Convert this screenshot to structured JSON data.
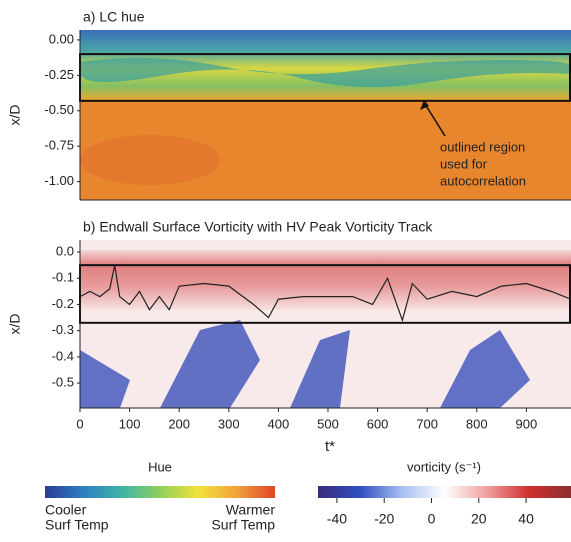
{
  "chart_data": [
    {
      "type": "heatmap",
      "title": "a) LC hue",
      "y_label": "x/D",
      "xlim": [
        0,
        990
      ],
      "ylim": [
        -1.13,
        0.07
      ],
      "yticks": [
        {
          "value": 0,
          "label": "0.00"
        },
        {
          "value": -0.25,
          "label": "-0.25"
        },
        {
          "value": -0.5,
          "label": "-0.50"
        },
        {
          "value": -0.75,
          "label": "-0.75"
        },
        {
          "value": -1,
          "label": "-1.00"
        }
      ],
      "region": [
        -0.1,
        -0.43
      ],
      "annotation": [
        "outlined region",
        "used for",
        "autocorrelation"
      ],
      "colorbar": {
        "title": "Hue",
        "low_label": [
          "Cooler",
          "Surf Temp"
        ],
        "high_label": [
          "Warmer",
          "Surf Temp"
        ],
        "colors": [
          "#2a3d9a",
          "#2f7fc0",
          "#3fb3a8",
          "#8fcf5a",
          "#f2e23a",
          "#f2a23a",
          "#e0452a"
        ]
      }
    },
    {
      "type": "line",
      "title": "b) Endwall Surface Vorticity with HV Peak Vorticity Track",
      "y_label": "x/D",
      "x_label": "t*",
      "xlim": [
        0,
        990
      ],
      "ylim": [
        -0.595,
        0.046
      ],
      "xticks": [
        0,
        100,
        200,
        300,
        400,
        500,
        600,
        700,
        800,
        900
      ],
      "yticks": [
        {
          "value": 0,
          "label": "0.0"
        },
        -0.1,
        -0.2,
        -0.3,
        -0.4,
        -0.5
      ],
      "region": [
        -0.05,
        -0.27
      ],
      "x": [
        0,
        20,
        40,
        60,
        70,
        80,
        100,
        120,
        140,
        160,
        180,
        200,
        250,
        300,
        350,
        380,
        400,
        450,
        500,
        550,
        590,
        620,
        650,
        670,
        700,
        750,
        800,
        850,
        900,
        950,
        990
      ],
      "series": [
        {
          "color": "#222222",
          "values": [
            -0.17,
            -0.15,
            -0.17,
            -0.14,
            -0.05,
            -0.17,
            -0.2,
            -0.15,
            -0.22,
            -0.17,
            -0.22,
            -0.13,
            -0.12,
            -0.13,
            -0.2,
            -0.25,
            -0.18,
            -0.17,
            -0.17,
            -0.17,
            -0.2,
            -0.1,
            -0.26,
            -0.12,
            -0.18,
            -0.15,
            -0.17,
            -0.13,
            -0.12,
            -0.15,
            -0.18
          ]
        }
      ],
      "colorbar": {
        "title": "vorticity (s⁻¹)",
        "lim": [
          -48,
          59
        ],
        "ticks": [
          -40,
          -20,
          0,
          20,
          40
        ],
        "colors": [
          "#3a2a7a",
          "#3050c0",
          "#a8c0f0",
          "#ffffff",
          "#f0a0a0",
          "#d03030",
          "#8a3030"
        ]
      }
    }
  ]
}
